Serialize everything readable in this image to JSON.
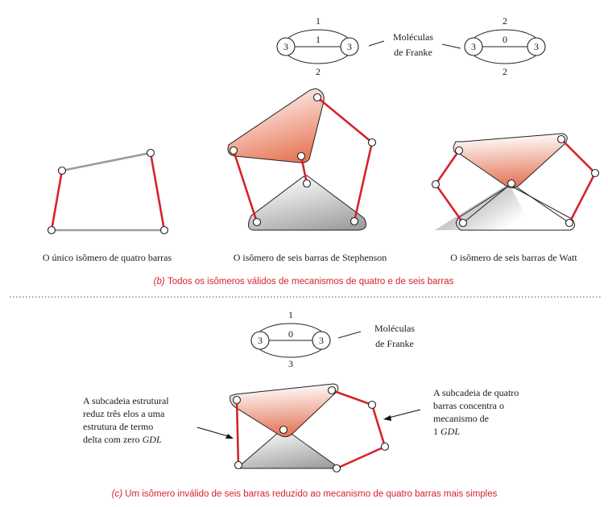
{
  "panel_b": {
    "franke": {
      "graph1": {
        "left": "3",
        "right": "3",
        "top": "1",
        "middle": "1",
        "bottom": "2"
      },
      "graph2": {
        "left": "3",
        "right": "3",
        "top": "2",
        "middle": "0",
        "bottom": "2"
      },
      "label_line1": "Moléculas",
      "label_line2": "de Franke"
    },
    "captions": {
      "four_bar": "O único isômero de quatro barras",
      "stephenson": "O isômero de seis barras de Stephenson",
      "watt": "O isômero de seis barras de Watt"
    },
    "subtitle_letter": "b",
    "subtitle_text": "Todos os isômeros válidos de mecanismos de quatro e de seis barras"
  },
  "panel_c": {
    "franke": {
      "graph": {
        "left": "3",
        "right": "3",
        "top": "1",
        "middle": "0",
        "bottom": "3"
      },
      "label_line1": "Moléculas",
      "label_line2": "de Franke"
    },
    "left_note": [
      "A subcadeia estrutural",
      "reduz três elos a uma",
      "estrutura de termo",
      "delta com zero ",
      "GDL"
    ],
    "right_note": [
      "A subcadeia de quatro",
      "barras concentra o",
      "mecanismo de",
      "1 ",
      "GDL"
    ],
    "subtitle_letter": "c",
    "subtitle_text": "Um isômero inválido de seis barras reduzido ao mecanismo de quatro barras mais simples"
  },
  "colors": {
    "link_red": "#d4242b",
    "ground_gray": "#9c9c9c",
    "text": "#1a1a1a"
  }
}
